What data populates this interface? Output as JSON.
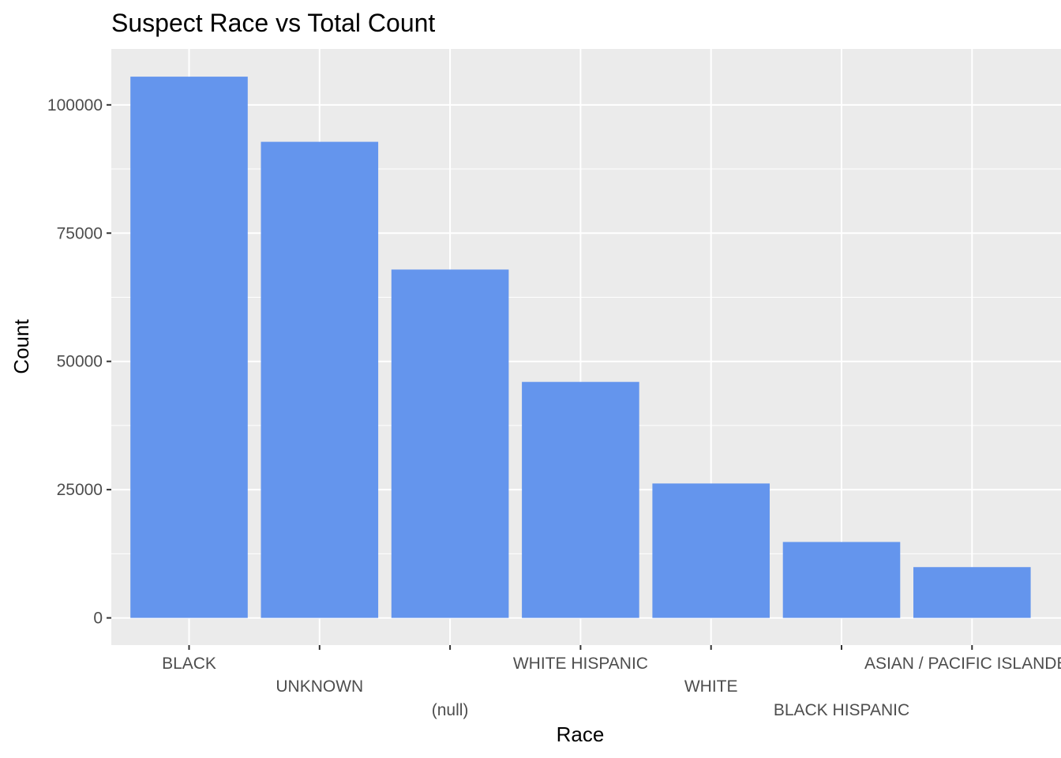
{
  "chart_data": {
    "type": "bar",
    "title": "Suspect Race vs Total Count",
    "xlabel": "Race",
    "ylabel": "Count",
    "categories": [
      "BLACK",
      "UNKNOWN",
      "(null)",
      "WHITE HISPANIC",
      "WHITE",
      "BLACK HISPANIC",
      "ASIAN / PACIFIC ISLANDER"
    ],
    "values": [
      105500,
      92800,
      67900,
      46000,
      26200,
      14800,
      9900
    ],
    "ylim": [
      -5300,
      110900
    ],
    "yticks": [
      0,
      25000,
      50000,
      75000,
      100000
    ],
    "ytick_labels": [
      "0",
      "25000",
      "50000",
      "75000",
      "100000"
    ],
    "grid": true,
    "legend": "none",
    "colors": {
      "bar": "#6495ED",
      "panel": "#EBEBEB",
      "grid_major": "#FFFFFF",
      "tick_text": "#4D4D4D",
      "tick_mark": "#333333"
    }
  }
}
